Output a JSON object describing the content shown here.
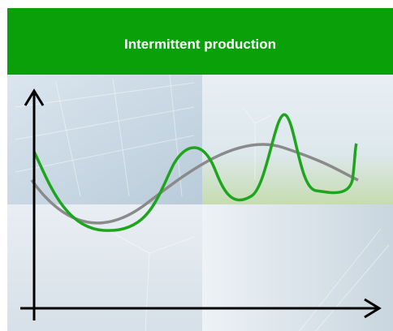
{
  "header": {
    "title": "Intermittent production"
  }
}
